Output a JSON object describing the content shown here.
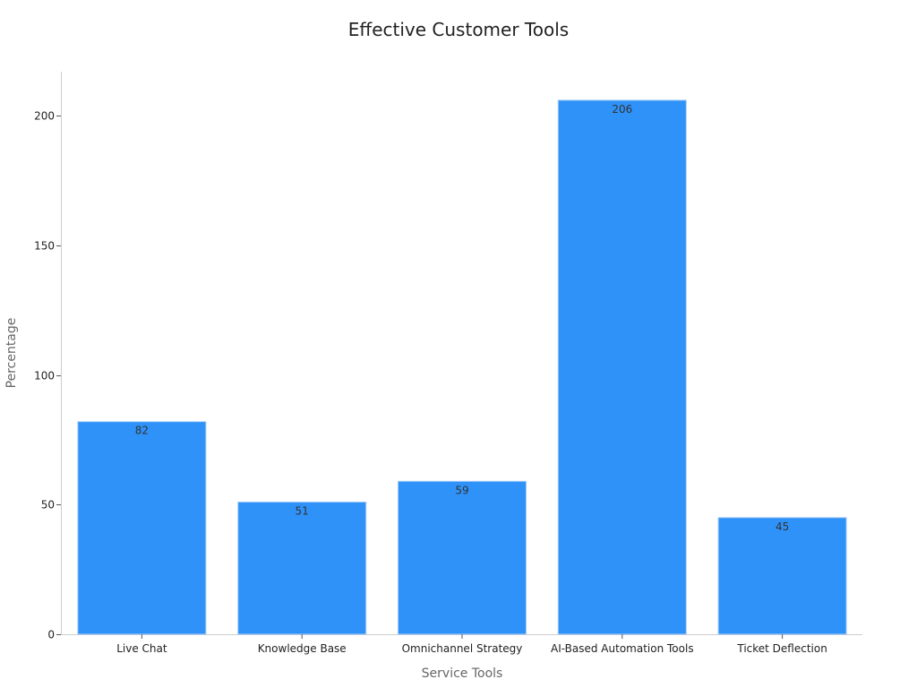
{
  "chart_data": {
    "type": "bar",
    "title": "Effective Customer Tools",
    "xlabel": "Service Tools",
    "ylabel": "Percentage",
    "categories": [
      "Live Chat",
      "Knowledge Base",
      "Omnichannel Strategy",
      "AI-Based Automation Tools",
      "Ticket Deflection"
    ],
    "values": [
      82,
      51,
      59,
      206,
      45
    ],
    "data_labels": [
      "82",
      "51",
      "59",
      "206",
      "45"
    ],
    "ylim": [
      0,
      217
    ],
    "yticks": [
      0,
      50,
      100,
      150,
      200
    ],
    "ytick_labels": [
      "0",
      "50",
      "100",
      "150",
      "200"
    ],
    "bar_color": "#2f92f8",
    "grid": false,
    "legend": "none"
  }
}
